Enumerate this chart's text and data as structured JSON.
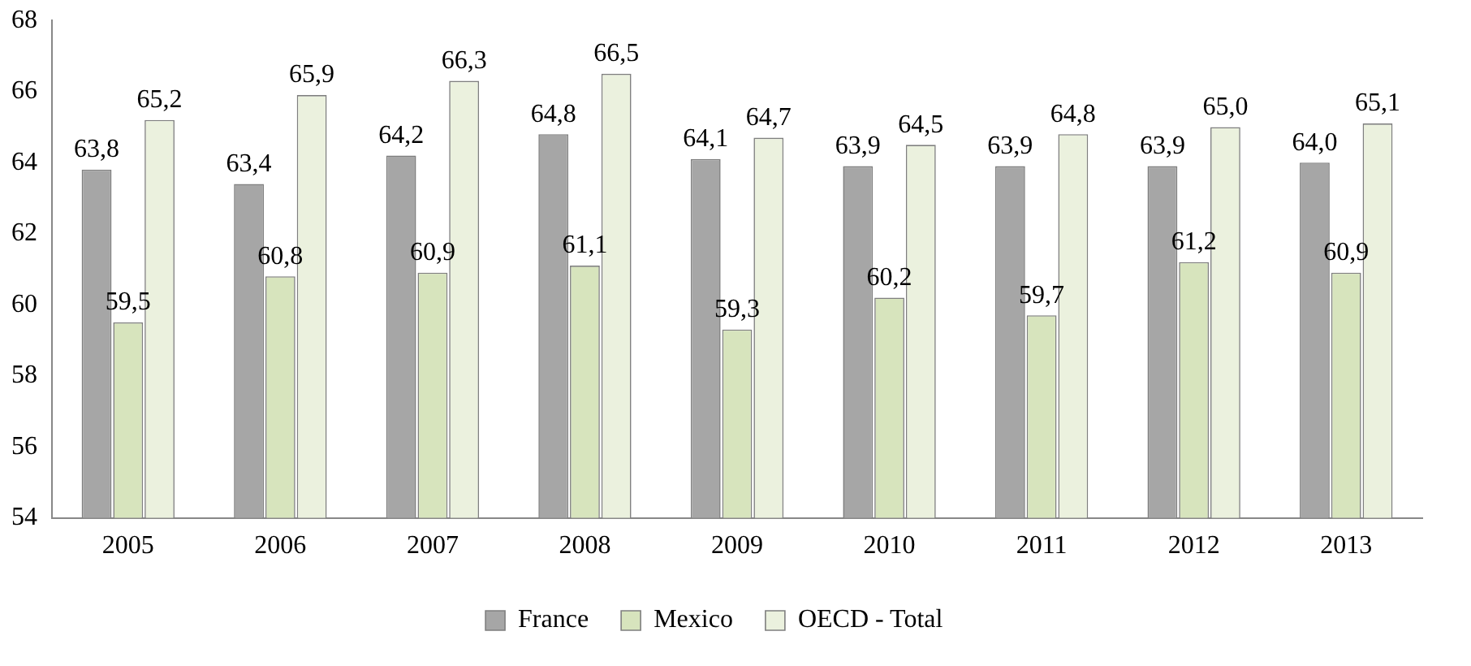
{
  "chart_data": {
    "type": "bar",
    "categories": [
      "2005",
      "2006",
      "2007",
      "2008",
      "2009",
      "2010",
      "2011",
      "2012",
      "2013"
    ],
    "series": [
      {
        "name": "France",
        "color": "#a6a6a6",
        "values": [
          63.8,
          63.4,
          64.2,
          64.8,
          64.1,
          63.9,
          63.9,
          63.9,
          64.0
        ],
        "value_labels": [
          "63,8",
          "63,4",
          "64,2",
          "64,8",
          "64,1",
          "63,9",
          "63,9",
          "63,9",
          "64,0"
        ]
      },
      {
        "name": "Mexico",
        "color": "#d7e4bd",
        "values": [
          59.5,
          60.8,
          60.9,
          61.1,
          59.3,
          60.2,
          59.7,
          61.2,
          60.9
        ],
        "value_labels": [
          "59,5",
          "60,8",
          "60,9",
          "61,1",
          "59,3",
          "60,2",
          "59,7",
          "61,2",
          "60,9"
        ]
      },
      {
        "name": "OECD - Total",
        "color": "#ebf1de",
        "values": [
          65.2,
          65.9,
          66.3,
          66.5,
          64.7,
          64.5,
          64.8,
          65.0,
          65.1
        ],
        "value_labels": [
          "65,2",
          "65,9",
          "66,3",
          "66,5",
          "64,7",
          "64,5",
          "64,8",
          "65,0",
          "65,1"
        ]
      }
    ],
    "ylim": [
      54,
      68
    ],
    "yticks": [
      54,
      56,
      58,
      60,
      62,
      64,
      66,
      68
    ],
    "grid": false,
    "legend": "bottom"
  }
}
